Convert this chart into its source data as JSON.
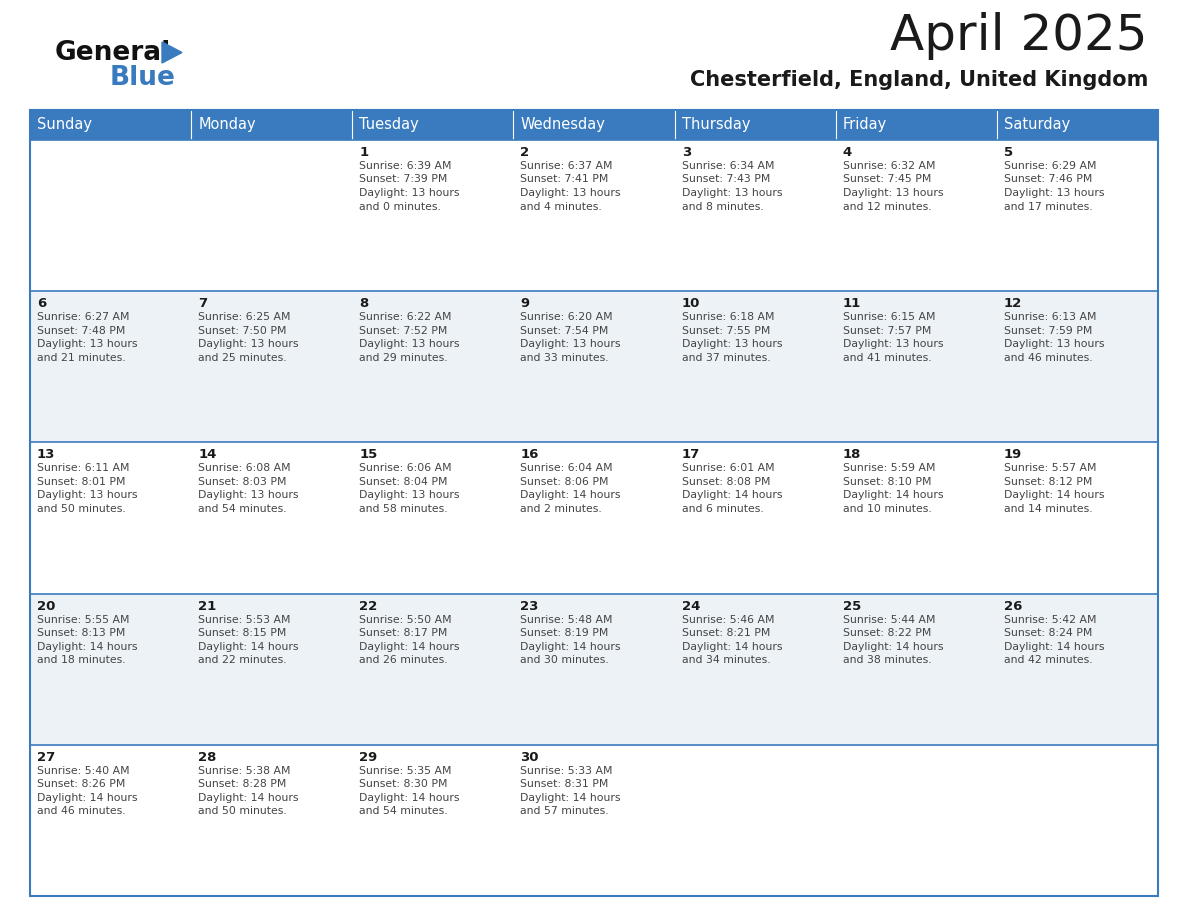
{
  "title": "April 2025",
  "subtitle": "Chesterfield, England, United Kingdom",
  "header_bg": "#3a7bbf",
  "header_text": "#ffffff",
  "row_bg_even": "#edf2f7",
  "row_bg_odd": "#ffffff",
  "border_color": "#3a7bbf",
  "days_header": [
    "Sunday",
    "Monday",
    "Tuesday",
    "Wednesday",
    "Thursday",
    "Friday",
    "Saturday"
  ],
  "calendar": [
    [
      {
        "day": "",
        "sunrise": "",
        "sunset": "",
        "daylight_h": "",
        "daylight_m": ""
      },
      {
        "day": "",
        "sunrise": "",
        "sunset": "",
        "daylight_h": "",
        "daylight_m": ""
      },
      {
        "day": "1",
        "sunrise": "6:39 AM",
        "sunset": "7:39 PM",
        "daylight_h": "13",
        "daylight_m": "0"
      },
      {
        "day": "2",
        "sunrise": "6:37 AM",
        "sunset": "7:41 PM",
        "daylight_h": "13",
        "daylight_m": "4"
      },
      {
        "day": "3",
        "sunrise": "6:34 AM",
        "sunset": "7:43 PM",
        "daylight_h": "13",
        "daylight_m": "8"
      },
      {
        "day": "4",
        "sunrise": "6:32 AM",
        "sunset": "7:45 PM",
        "daylight_h": "13",
        "daylight_m": "12"
      },
      {
        "day": "5",
        "sunrise": "6:29 AM",
        "sunset": "7:46 PM",
        "daylight_h": "13",
        "daylight_m": "17"
      }
    ],
    [
      {
        "day": "6",
        "sunrise": "6:27 AM",
        "sunset": "7:48 PM",
        "daylight_h": "13",
        "daylight_m": "21"
      },
      {
        "day": "7",
        "sunrise": "6:25 AM",
        "sunset": "7:50 PM",
        "daylight_h": "13",
        "daylight_m": "25"
      },
      {
        "day": "8",
        "sunrise": "6:22 AM",
        "sunset": "7:52 PM",
        "daylight_h": "13",
        "daylight_m": "29"
      },
      {
        "day": "9",
        "sunrise": "6:20 AM",
        "sunset": "7:54 PM",
        "daylight_h": "13",
        "daylight_m": "33"
      },
      {
        "day": "10",
        "sunrise": "6:18 AM",
        "sunset": "7:55 PM",
        "daylight_h": "13",
        "daylight_m": "37"
      },
      {
        "day": "11",
        "sunrise": "6:15 AM",
        "sunset": "7:57 PM",
        "daylight_h": "13",
        "daylight_m": "41"
      },
      {
        "day": "12",
        "sunrise": "6:13 AM",
        "sunset": "7:59 PM",
        "daylight_h": "13",
        "daylight_m": "46"
      }
    ],
    [
      {
        "day": "13",
        "sunrise": "6:11 AM",
        "sunset": "8:01 PM",
        "daylight_h": "13",
        "daylight_m": "50"
      },
      {
        "day": "14",
        "sunrise": "6:08 AM",
        "sunset": "8:03 PM",
        "daylight_h": "13",
        "daylight_m": "54"
      },
      {
        "day": "15",
        "sunrise": "6:06 AM",
        "sunset": "8:04 PM",
        "daylight_h": "13",
        "daylight_m": "58"
      },
      {
        "day": "16",
        "sunrise": "6:04 AM",
        "sunset": "8:06 PM",
        "daylight_h": "14",
        "daylight_m": "2"
      },
      {
        "day": "17",
        "sunrise": "6:01 AM",
        "sunset": "8:08 PM",
        "daylight_h": "14",
        "daylight_m": "6"
      },
      {
        "day": "18",
        "sunrise": "5:59 AM",
        "sunset": "8:10 PM",
        "daylight_h": "14",
        "daylight_m": "10"
      },
      {
        "day": "19",
        "sunrise": "5:57 AM",
        "sunset": "8:12 PM",
        "daylight_h": "14",
        "daylight_m": "14"
      }
    ],
    [
      {
        "day": "20",
        "sunrise": "5:55 AM",
        "sunset": "8:13 PM",
        "daylight_h": "14",
        "daylight_m": "18"
      },
      {
        "day": "21",
        "sunrise": "5:53 AM",
        "sunset": "8:15 PM",
        "daylight_h": "14",
        "daylight_m": "22"
      },
      {
        "day": "22",
        "sunrise": "5:50 AM",
        "sunset": "8:17 PM",
        "daylight_h": "14",
        "daylight_m": "26"
      },
      {
        "day": "23",
        "sunrise": "5:48 AM",
        "sunset": "8:19 PM",
        "daylight_h": "14",
        "daylight_m": "30"
      },
      {
        "day": "24",
        "sunrise": "5:46 AM",
        "sunset": "8:21 PM",
        "daylight_h": "14",
        "daylight_m": "34"
      },
      {
        "day": "25",
        "sunrise": "5:44 AM",
        "sunset": "8:22 PM",
        "daylight_h": "14",
        "daylight_m": "38"
      },
      {
        "day": "26",
        "sunrise": "5:42 AM",
        "sunset": "8:24 PM",
        "daylight_h": "14",
        "daylight_m": "42"
      }
    ],
    [
      {
        "day": "27",
        "sunrise": "5:40 AM",
        "sunset": "8:26 PM",
        "daylight_h": "14",
        "daylight_m": "46"
      },
      {
        "day": "28",
        "sunrise": "5:38 AM",
        "sunset": "8:28 PM",
        "daylight_h": "14",
        "daylight_m": "50"
      },
      {
        "day": "29",
        "sunrise": "5:35 AM",
        "sunset": "8:30 PM",
        "daylight_h": "14",
        "daylight_m": "54"
      },
      {
        "day": "30",
        "sunrise": "5:33 AM",
        "sunset": "8:31 PM",
        "daylight_h": "14",
        "daylight_m": "57"
      },
      {
        "day": "",
        "sunrise": "",
        "sunset": "",
        "daylight_h": "",
        "daylight_m": ""
      },
      {
        "day": "",
        "sunrise": "",
        "sunset": "",
        "daylight_h": "",
        "daylight_m": ""
      },
      {
        "day": "",
        "sunrise": "",
        "sunset": "",
        "daylight_h": "",
        "daylight_m": ""
      }
    ]
  ],
  "logo_text_general": "General",
  "logo_text_blue": "Blue",
  "logo_triangle_color": "#3a7bbf",
  "text_color_dark": "#1a1a1a",
  "text_color_small": "#444444",
  "cell_text_fontsize": 7.8,
  "day_num_fontsize": 9.5,
  "header_fontsize": 10.5,
  "title_fontsize": 36,
  "subtitle_fontsize": 15
}
